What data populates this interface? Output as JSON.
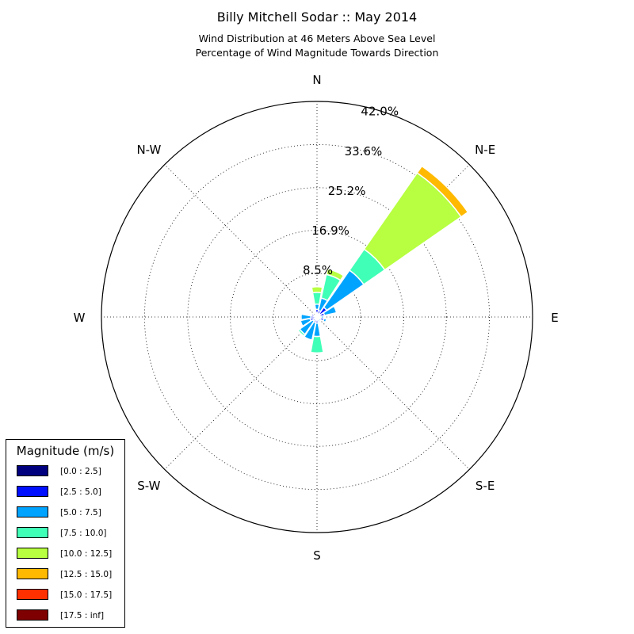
{
  "chart_data": {
    "type": "windrose",
    "title": "Billy Mitchell Sodar :: May 2014",
    "subtitle_lines": [
      "Wind Distribution at 46 Meters Above Sea Level",
      "Percentage of Wind Magnitude Towards Direction"
    ],
    "directions": [
      "N",
      "N-E",
      "E",
      "S-E",
      "S",
      "S-W",
      "W",
      "N-W"
    ],
    "radial_ticks": [
      "8.5%",
      "16.9%",
      "25.2%",
      "33.6%",
      "42.0%"
    ],
    "rmax": 42.0,
    "legend_title": "Magnitude (m/s)",
    "bins": [
      {
        "label": "[0.0 : 2.5]",
        "color": "#00007f"
      },
      {
        "label": "[2.5 : 5.0]",
        "color": "#0010ff"
      },
      {
        "label": "[5.0 : 7.5]",
        "color": "#00a4ff"
      },
      {
        "label": "[7.5 : 10.0]",
        "color": "#40ffb7"
      },
      {
        "label": "[10.0 : 12.5]",
        "color": "#b7ff40"
      },
      {
        "label": "[12.5 : 15.0]",
        "color": "#ffb900"
      },
      {
        "label": "[15.0 : 17.5]",
        "color": "#ff3000"
      },
      {
        "label": "[17.5 : inf]",
        "color": "#7f0000"
      }
    ],
    "sectors": [
      {
        "direction": 0,
        "cumulative": [
          0.8,
          1.5,
          2.5,
          4.8,
          5.9,
          6.1,
          6.1,
          6.1
        ]
      },
      {
        "direction": 22.5,
        "cumulative": [
          0.6,
          1.3,
          3.8,
          8.5,
          9.6,
          9.8,
          9.8,
          9.8
        ]
      },
      {
        "direction": 45,
        "cumulative": [
          0.8,
          2.3,
          11.1,
          16.1,
          34.2,
          35.8,
          35.8,
          35.8
        ]
      },
      {
        "direction": 67.5,
        "cumulative": [
          0.6,
          1.5,
          3.9,
          3.9,
          3.9,
          3.9,
          3.9,
          3.9
        ]
      },
      {
        "direction": 90,
        "cumulative": [
          0.4,
          0.8,
          1.3,
          1.3,
          1.3,
          1.3,
          1.3,
          1.3
        ]
      },
      {
        "direction": 112.5,
        "cumulative": [
          0.7,
          1.4,
          1.9,
          1.9,
          1.9,
          1.9,
          1.9,
          1.9
        ]
      },
      {
        "direction": 135,
        "cumulative": [
          0.3,
          0.6,
          1.0,
          1.0,
          1.0,
          1.0,
          1.0,
          1.0
        ]
      },
      {
        "direction": 157.5,
        "cumulative": [
          0.3,
          0.6,
          1.0,
          1.0,
          1.0,
          1.0,
          1.0,
          1.0
        ]
      },
      {
        "direction": 180,
        "cumulative": [
          0.4,
          1.2,
          3.8,
          7.0,
          7.0,
          7.0,
          7.0,
          7.0
        ]
      },
      {
        "direction": 202.5,
        "cumulative": [
          0.4,
          1.1,
          4.6,
          4.8,
          4.8,
          4.8,
          4.8,
          4.8
        ]
      },
      {
        "direction": 225,
        "cumulative": [
          0.4,
          1.0,
          4.1,
          4.5,
          4.5,
          4.5,
          4.5,
          4.5
        ]
      },
      {
        "direction": 247.5,
        "cumulative": [
          0.4,
          1.4,
          3.3,
          3.3,
          3.3,
          3.3,
          3.3,
          3.3
        ]
      },
      {
        "direction": 270,
        "cumulative": [
          0.4,
          1.2,
          3.1,
          3.1,
          3.1,
          3.1,
          3.1,
          3.1
        ]
      },
      {
        "direction": 292.5,
        "cumulative": [
          0.4,
          1.1,
          1.1,
          1.1,
          1.1,
          1.1,
          1.1,
          1.1
        ]
      },
      {
        "direction": 315,
        "cumulative": [
          0.3,
          0.6,
          0.6,
          0.6,
          0.6,
          0.6,
          0.6,
          0.6
        ]
      },
      {
        "direction": 337.5,
        "cumulative": [
          0.3,
          0.6,
          0.6,
          0.6,
          0.6,
          0.6,
          0.6,
          0.6
        ]
      }
    ],
    "grid": true
  }
}
